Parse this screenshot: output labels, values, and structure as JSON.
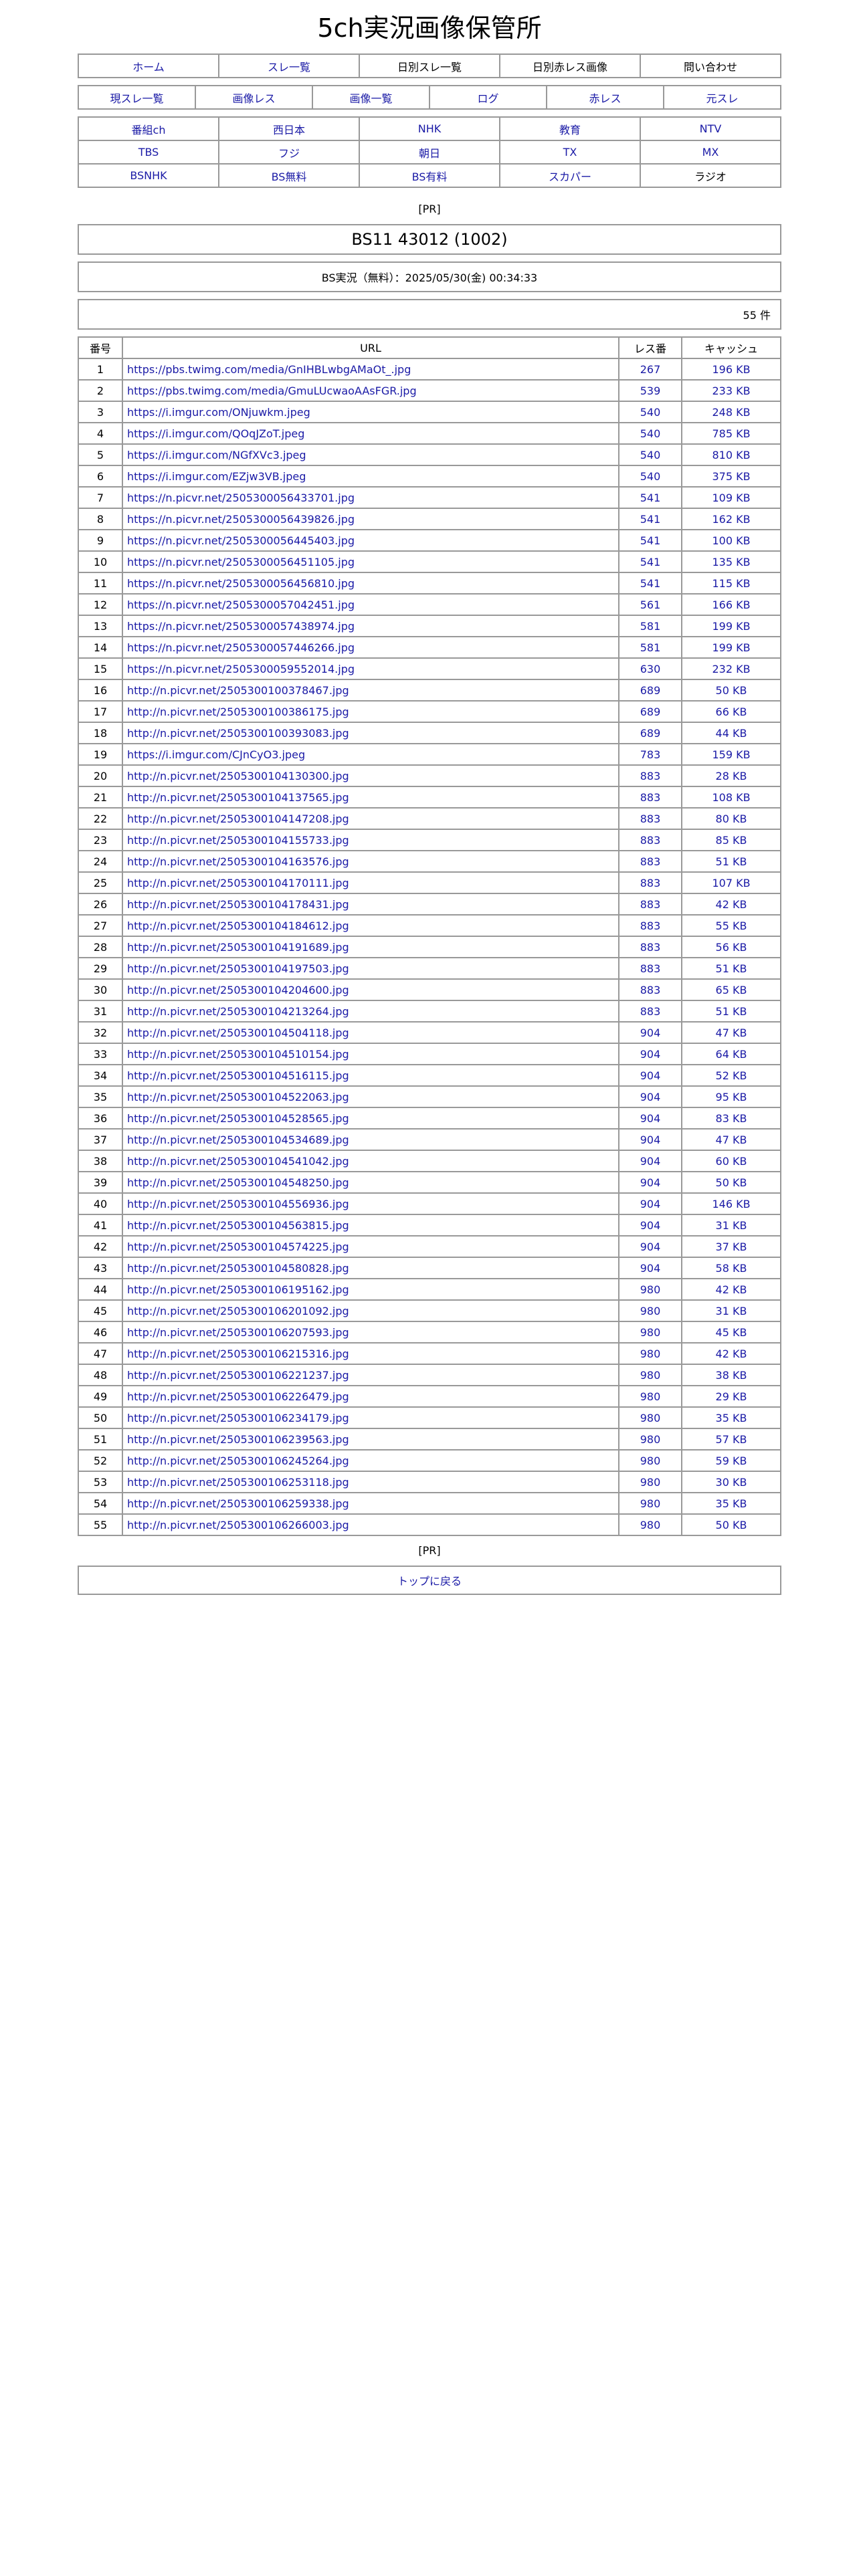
{
  "site_title": "5ch実況画像保管所",
  "nav1": [
    {
      "label": "ホーム",
      "link": true
    },
    {
      "label": "スレ一覧",
      "link": true
    },
    {
      "label": "日別スレ一覧",
      "link": false
    },
    {
      "label": "日別赤レス画像",
      "link": false
    },
    {
      "label": "問い合わせ",
      "link": false
    }
  ],
  "nav2": [
    "現スレ一覧",
    "画像レス",
    "画像一覧",
    "ログ",
    "赤レス",
    "元スレ"
  ],
  "nav3": [
    [
      "番組ch",
      "西日本",
      "NHK",
      "教育",
      "NTV"
    ],
    [
      "TBS",
      "フジ",
      "朝日",
      "TX",
      "MX"
    ],
    [
      "BSNHK",
      "BS無料",
      "BS有料",
      "スカパー",
      "ラジオ"
    ]
  ],
  "nav3_plain": [
    "ラジオ"
  ],
  "pr_label": "[PR]",
  "thread_title": "BS11 43012 (1002)",
  "thread_info": "BS実況（無料）：2025/05/30(金) 00:34:33",
  "count": "55 件",
  "table": {
    "headers": [
      "番号",
      "URL",
      "レス番",
      "キャッシュ"
    ],
    "rows": [
      [
        "1",
        "https://pbs.twimg.com/media/GnIHBLwbgAMaOt_.jpg",
        "267",
        "196 KB"
      ],
      [
        "2",
        "https://pbs.twimg.com/media/GmuLUcwaoAAsFGR.jpg",
        "539",
        "233 KB"
      ],
      [
        "3",
        "https://i.imgur.com/ONjuwkm.jpeg",
        "540",
        "248 KB"
      ],
      [
        "4",
        "https://i.imgur.com/QOqJZoT.jpeg",
        "540",
        "785 KB"
      ],
      [
        "5",
        "https://i.imgur.com/NGfXVc3.jpeg",
        "540",
        "810 KB"
      ],
      [
        "6",
        "https://i.imgur.com/EZjw3VB.jpeg",
        "540",
        "375 KB"
      ],
      [
        "7",
        "https://n.picvr.net/2505300056433701.jpg",
        "541",
        "109 KB"
      ],
      [
        "8",
        "https://n.picvr.net/2505300056439826.jpg",
        "541",
        "162 KB"
      ],
      [
        "9",
        "https://n.picvr.net/2505300056445403.jpg",
        "541",
        "100 KB"
      ],
      [
        "10",
        "https://n.picvr.net/2505300056451105.jpg",
        "541",
        "135 KB"
      ],
      [
        "11",
        "https://n.picvr.net/2505300056456810.jpg",
        "541",
        "115 KB"
      ],
      [
        "12",
        "https://n.picvr.net/2505300057042451.jpg",
        "561",
        "166 KB"
      ],
      [
        "13",
        "https://n.picvr.net/2505300057438974.jpg",
        "581",
        "199 KB"
      ],
      [
        "14",
        "https://n.picvr.net/2505300057446266.jpg",
        "581",
        "199 KB"
      ],
      [
        "15",
        "https://n.picvr.net/2505300059552014.jpg",
        "630",
        "232 KB"
      ],
      [
        "16",
        "http://n.picvr.net/2505300100378467.jpg",
        "689",
        "50 KB"
      ],
      [
        "17",
        "http://n.picvr.net/2505300100386175.jpg",
        "689",
        "66 KB"
      ],
      [
        "18",
        "http://n.picvr.net/2505300100393083.jpg",
        "689",
        "44 KB"
      ],
      [
        "19",
        "https://i.imgur.com/CJnCyO3.jpeg",
        "783",
        "159 KB"
      ],
      [
        "20",
        "http://n.picvr.net/2505300104130300.jpg",
        "883",
        "28 KB"
      ],
      [
        "21",
        "http://n.picvr.net/2505300104137565.jpg",
        "883",
        "108 KB"
      ],
      [
        "22",
        "http://n.picvr.net/2505300104147208.jpg",
        "883",
        "80 KB"
      ],
      [
        "23",
        "http://n.picvr.net/2505300104155733.jpg",
        "883",
        "85 KB"
      ],
      [
        "24",
        "http://n.picvr.net/2505300104163576.jpg",
        "883",
        "51 KB"
      ],
      [
        "25",
        "http://n.picvr.net/2505300104170111.jpg",
        "883",
        "107 KB"
      ],
      [
        "26",
        "http://n.picvr.net/2505300104178431.jpg",
        "883",
        "42 KB"
      ],
      [
        "27",
        "http://n.picvr.net/2505300104184612.jpg",
        "883",
        "55 KB"
      ],
      [
        "28",
        "http://n.picvr.net/2505300104191689.jpg",
        "883",
        "56 KB"
      ],
      [
        "29",
        "http://n.picvr.net/2505300104197503.jpg",
        "883",
        "51 KB"
      ],
      [
        "30",
        "http://n.picvr.net/2505300104204600.jpg",
        "883",
        "65 KB"
      ],
      [
        "31",
        "http://n.picvr.net/2505300104213264.jpg",
        "883",
        "51 KB"
      ],
      [
        "32",
        "http://n.picvr.net/2505300104504118.jpg",
        "904",
        "47 KB"
      ],
      [
        "33",
        "http://n.picvr.net/2505300104510154.jpg",
        "904",
        "64 KB"
      ],
      [
        "34",
        "http://n.picvr.net/2505300104516115.jpg",
        "904",
        "52 KB"
      ],
      [
        "35",
        "http://n.picvr.net/2505300104522063.jpg",
        "904",
        "95 KB"
      ],
      [
        "36",
        "http://n.picvr.net/2505300104528565.jpg",
        "904",
        "83 KB"
      ],
      [
        "37",
        "http://n.picvr.net/2505300104534689.jpg",
        "904",
        "47 KB"
      ],
      [
        "38",
        "http://n.picvr.net/2505300104541042.jpg",
        "904",
        "60 KB"
      ],
      [
        "39",
        "http://n.picvr.net/2505300104548250.jpg",
        "904",
        "50 KB"
      ],
      [
        "40",
        "http://n.picvr.net/2505300104556936.jpg",
        "904",
        "146 KB"
      ],
      [
        "41",
        "http://n.picvr.net/2505300104563815.jpg",
        "904",
        "31 KB"
      ],
      [
        "42",
        "http://n.picvr.net/2505300104574225.jpg",
        "904",
        "37 KB"
      ],
      [
        "43",
        "http://n.picvr.net/2505300104580828.jpg",
        "904",
        "58 KB"
      ],
      [
        "44",
        "http://n.picvr.net/2505300106195162.jpg",
        "980",
        "42 KB"
      ],
      [
        "45",
        "http://n.picvr.net/2505300106201092.jpg",
        "980",
        "31 KB"
      ],
      [
        "46",
        "http://n.picvr.net/2505300106207593.jpg",
        "980",
        "45 KB"
      ],
      [
        "47",
        "http://n.picvr.net/2505300106215316.jpg",
        "980",
        "42 KB"
      ],
      [
        "48",
        "http://n.picvr.net/2505300106221237.jpg",
        "980",
        "38 KB"
      ],
      [
        "49",
        "http://n.picvr.net/2505300106226479.jpg",
        "980",
        "29 KB"
      ],
      [
        "50",
        "http://n.picvr.net/2505300106234179.jpg",
        "980",
        "35 KB"
      ],
      [
        "51",
        "http://n.picvr.net/2505300106239563.jpg",
        "980",
        "57 KB"
      ],
      [
        "52",
        "http://n.picvr.net/2505300106245264.jpg",
        "980",
        "59 KB"
      ],
      [
        "53",
        "http://n.picvr.net/2505300106253118.jpg",
        "980",
        "30 KB"
      ],
      [
        "54",
        "http://n.picvr.net/2505300106259338.jpg",
        "980",
        "35 KB"
      ],
      [
        "55",
        "http://n.picvr.net/2505300106266003.jpg",
        "980",
        "50 KB"
      ]
    ]
  },
  "back_to_top": "トップに戻る",
  "colors": {
    "link": "#1a1aa6",
    "border": "#999999"
  }
}
